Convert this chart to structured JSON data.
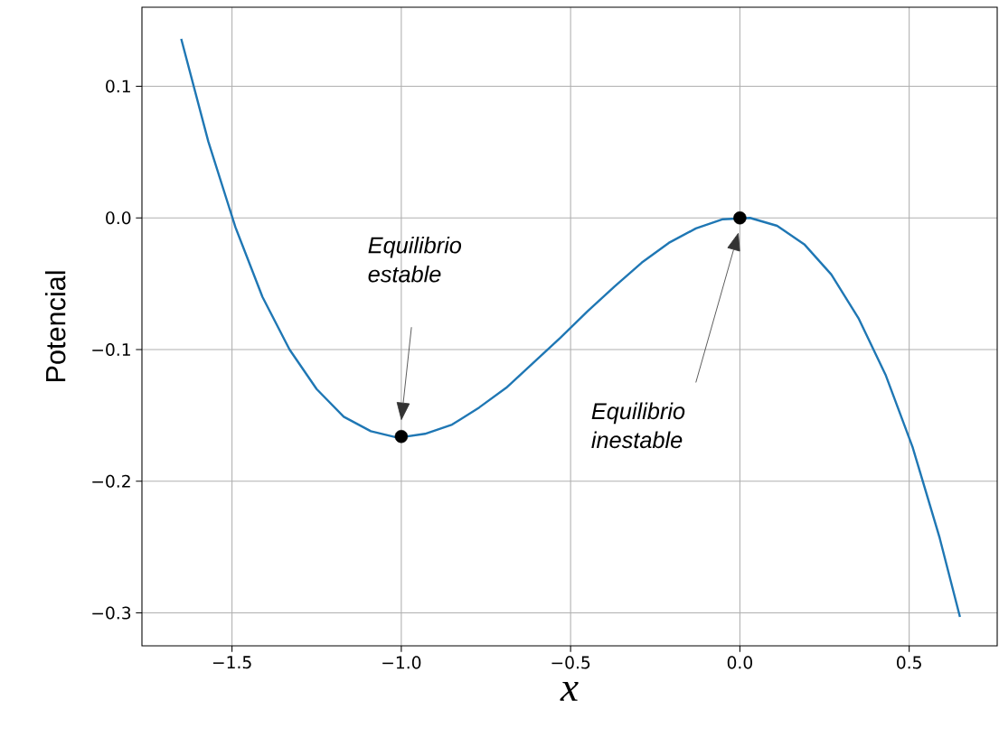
{
  "chart_data": {
    "type": "line",
    "xlabel": "x",
    "ylabel": "Potencial",
    "xlim": [
      -1.766,
      0.76
    ],
    "ylim": [
      -0.325,
      0.16
    ],
    "xticks": [
      {
        "value": -1.5,
        "label": "−1.5"
      },
      {
        "value": -1.0,
        "label": "−1.0"
      },
      {
        "value": -0.5,
        "label": "−0.5"
      },
      {
        "value": 0.0,
        "label": "0.0"
      },
      {
        "value": 0.5,
        "label": "0.5"
      }
    ],
    "yticks": [
      {
        "value": -0.3,
        "label": "−0.3"
      },
      {
        "value": -0.2,
        "label": "−0.2"
      },
      {
        "value": -0.1,
        "label": "−0.1"
      },
      {
        "value": 0.0,
        "label": "0.0"
      },
      {
        "value": 0.1,
        "label": "0.1"
      }
    ],
    "grid": true,
    "series": [
      {
        "type": "line",
        "color": "#1f77b4",
        "marker": "none",
        "x": [
          -1.65,
          -1.57,
          -1.49,
          -1.41,
          -1.33,
          -1.25,
          -1.17,
          -1.09,
          -1.01,
          -0.93,
          -0.85,
          -0.77,
          -0.69,
          -0.61,
          -0.53,
          -0.45,
          -0.37,
          -0.29,
          -0.21,
          -0.13,
          -0.05,
          0.03,
          0.11,
          0.19,
          0.27,
          0.35,
          0.43,
          0.51,
          0.59,
          0.65
        ],
        "values": [
          0.136,
          0.058,
          -0.007,
          -0.06,
          -0.1,
          -0.13,
          -0.151,
          -0.162,
          -0.167,
          -0.164,
          -0.157,
          -0.144,
          -0.129,
          -0.11,
          -0.091,
          -0.071,
          -0.052,
          -0.034,
          -0.019,
          -0.008,
          -0.001,
          0.0,
          -0.006,
          -0.02,
          -0.043,
          -0.076,
          -0.119,
          -0.174,
          -0.243,
          -0.303
        ]
      },
      {
        "type": "scatter",
        "color": "#000000",
        "marker": "circle",
        "x": [
          -1.0,
          0.0
        ],
        "values": [
          -0.166,
          0.0
        ]
      }
    ],
    "annotations": [
      "Equilibrio estable",
      "Equilibrio inestable"
    ]
  }
}
